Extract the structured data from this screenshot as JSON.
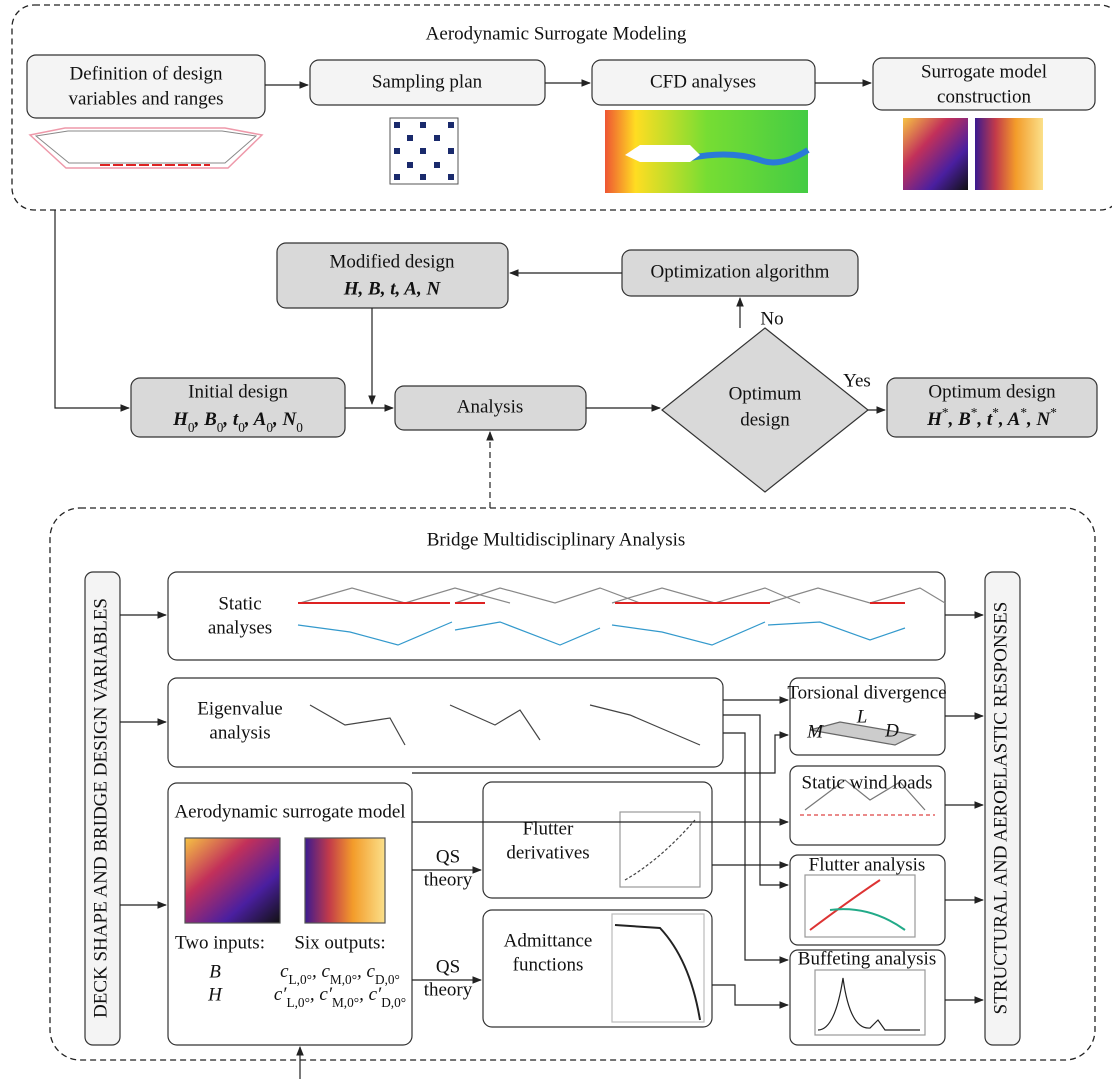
{
  "top": {
    "title": "Aerodynamic Surrogate Modeling",
    "definition": [
      "Definition of design",
      "variables and ranges"
    ],
    "sampling": "Sampling plan",
    "cfd": "CFD analyses",
    "surrogate": [
      "Surrogate model",
      "construction"
    ]
  },
  "loop": {
    "modified": {
      "title": "Modified design",
      "vars": "H, B, t, A, N"
    },
    "optimization": "Optimization algorithm",
    "no": "No",
    "initial": {
      "title": "Initial design",
      "vars": [
        {
          "s": "H",
          "sub": "0"
        },
        ", ",
        {
          "s": "B",
          "sub": "0"
        },
        ", ",
        {
          "s": "t",
          "sub": "0"
        },
        ", ",
        {
          "s": "A",
          "sub": "0"
        },
        ", ",
        {
          "s": "N",
          "sub": "0"
        }
      ]
    },
    "analysis": "Analysis",
    "decision": [
      "Optimum",
      "design"
    ],
    "yes": "Yes",
    "optimum": {
      "title": "Optimum design",
      "vars": [
        {
          "s": "H",
          "sup": "*"
        },
        ", ",
        {
          "s": "B",
          "sup": "*"
        },
        ", ",
        {
          "s": "t",
          "sup": "*"
        },
        ", ",
        {
          "s": "A",
          "sup": "*"
        },
        ", ",
        {
          "s": "N",
          "sup": "*"
        }
      ]
    }
  },
  "bottom": {
    "title": "Bridge Multidisciplinary Analysis",
    "left": "DECK SHAPE AND BRIDGE DESIGN VARIABLES",
    "right": "STRUCTURAL AND AEROELASTIC RESPONSES",
    "static": [
      "Static",
      "analyses"
    ],
    "eigen": [
      "Eigenvalue",
      "analysis"
    ],
    "aero": {
      "title": "Aerodynamic surrogate model",
      "inputs_label": "Two inputs:",
      "inputs": [
        "B",
        "H"
      ],
      "outputs_label": "Six outputs:",
      "outputs": [
        [
          {
            "s": "c",
            "sub": "L,0°"
          },
          ", ",
          {
            "s": "c",
            "sub": "M,0°"
          },
          ", ",
          {
            "s": "c",
            "sub": "D,0°"
          }
        ],
        [
          {
            "s": "c′",
            "sub": "L,0°"
          },
          ", ",
          {
            "s": "c′",
            "sub": "M,0°"
          },
          ", ",
          {
            "s": "c′",
            "sub": "D,0°"
          }
        ]
      ]
    },
    "qs_theory": [
      [
        "QS",
        "theory"
      ],
      [
        "QS",
        "theory"
      ]
    ],
    "flutter_derivatives": [
      "Flutter",
      "derivatives"
    ],
    "admittance": [
      "Admittance",
      "functions"
    ],
    "torsional": "Torsional divergence",
    "torsional_labels": [
      "M",
      "L",
      "D"
    ],
    "wind_loads": "Static wind loads",
    "flutter": "Flutter analysis",
    "buffeting": "Buffeting analysis"
  }
}
